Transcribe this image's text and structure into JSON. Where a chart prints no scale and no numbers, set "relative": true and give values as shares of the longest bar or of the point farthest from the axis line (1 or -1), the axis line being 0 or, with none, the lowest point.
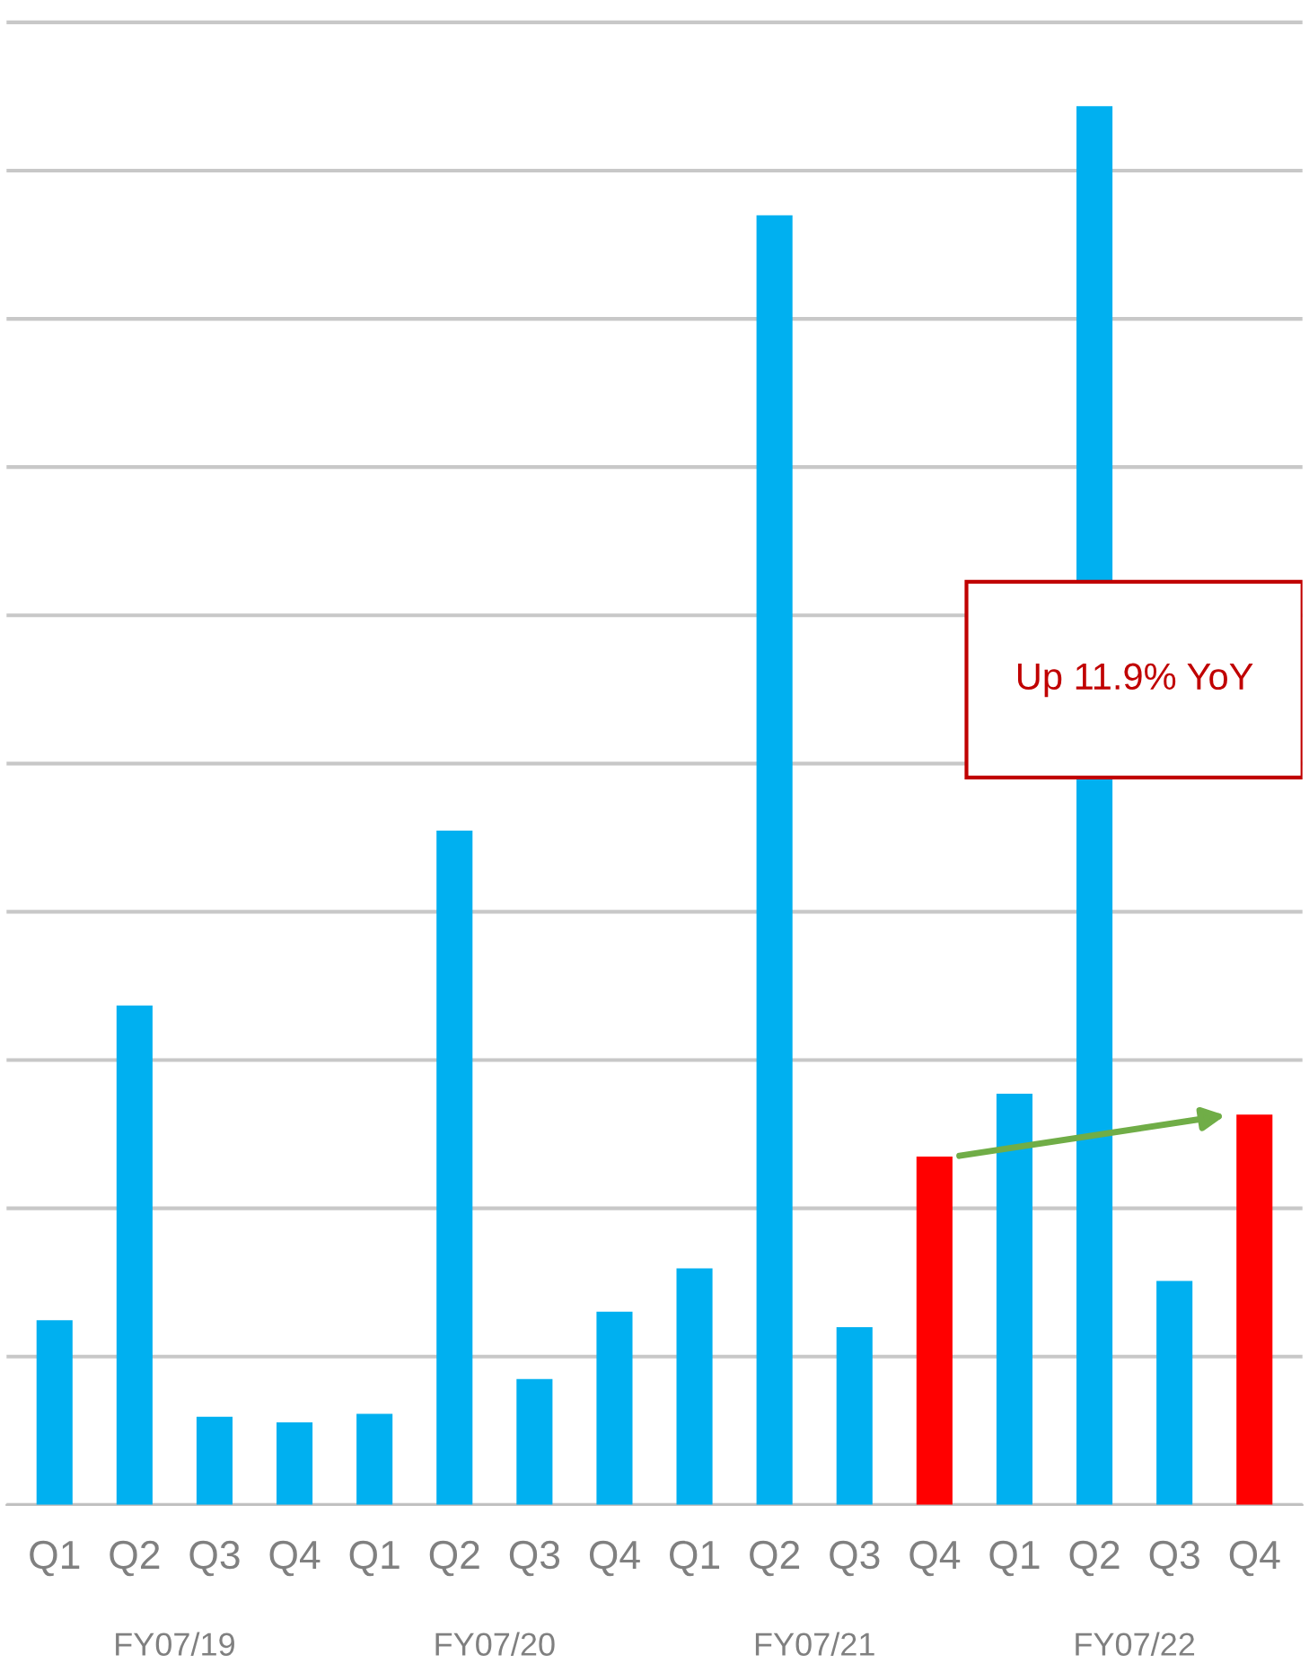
{
  "chart_data": {
    "type": "bar",
    "relative": true,
    "grid": "y",
    "categories": [
      "Q1",
      "Q2",
      "Q3",
      "Q4",
      "Q1",
      "Q2",
      "Q3",
      "Q4",
      "Q1",
      "Q2",
      "Q3",
      "Q4",
      "Q1",
      "Q2",
      "Q3",
      "Q4"
    ],
    "values": [
      0.132,
      0.357,
      0.063,
      0.059,
      0.065,
      0.482,
      0.09,
      0.138,
      0.169,
      0.922,
      0.127,
      0.249,
      0.294,
      1,
      0.16,
      0.279
    ],
    "colors": [
      "#00b0f0",
      "#00b0f0",
      "#00b0f0",
      "#00b0f0",
      "#00b0f0",
      "#00b0f0",
      "#00b0f0",
      "#00b0f0",
      "#00b0f0",
      "#00b0f0",
      "#00b0f0",
      "#ff0000",
      "#00b0f0",
      "#00b0f0",
      "#00b0f0",
      "#ff0000"
    ],
    "annotations": [
      "FY07/19",
      "FY07/20",
      "FY07/21",
      "FY07/22",
      "Up 11.9% YoY"
    ]
  }
}
